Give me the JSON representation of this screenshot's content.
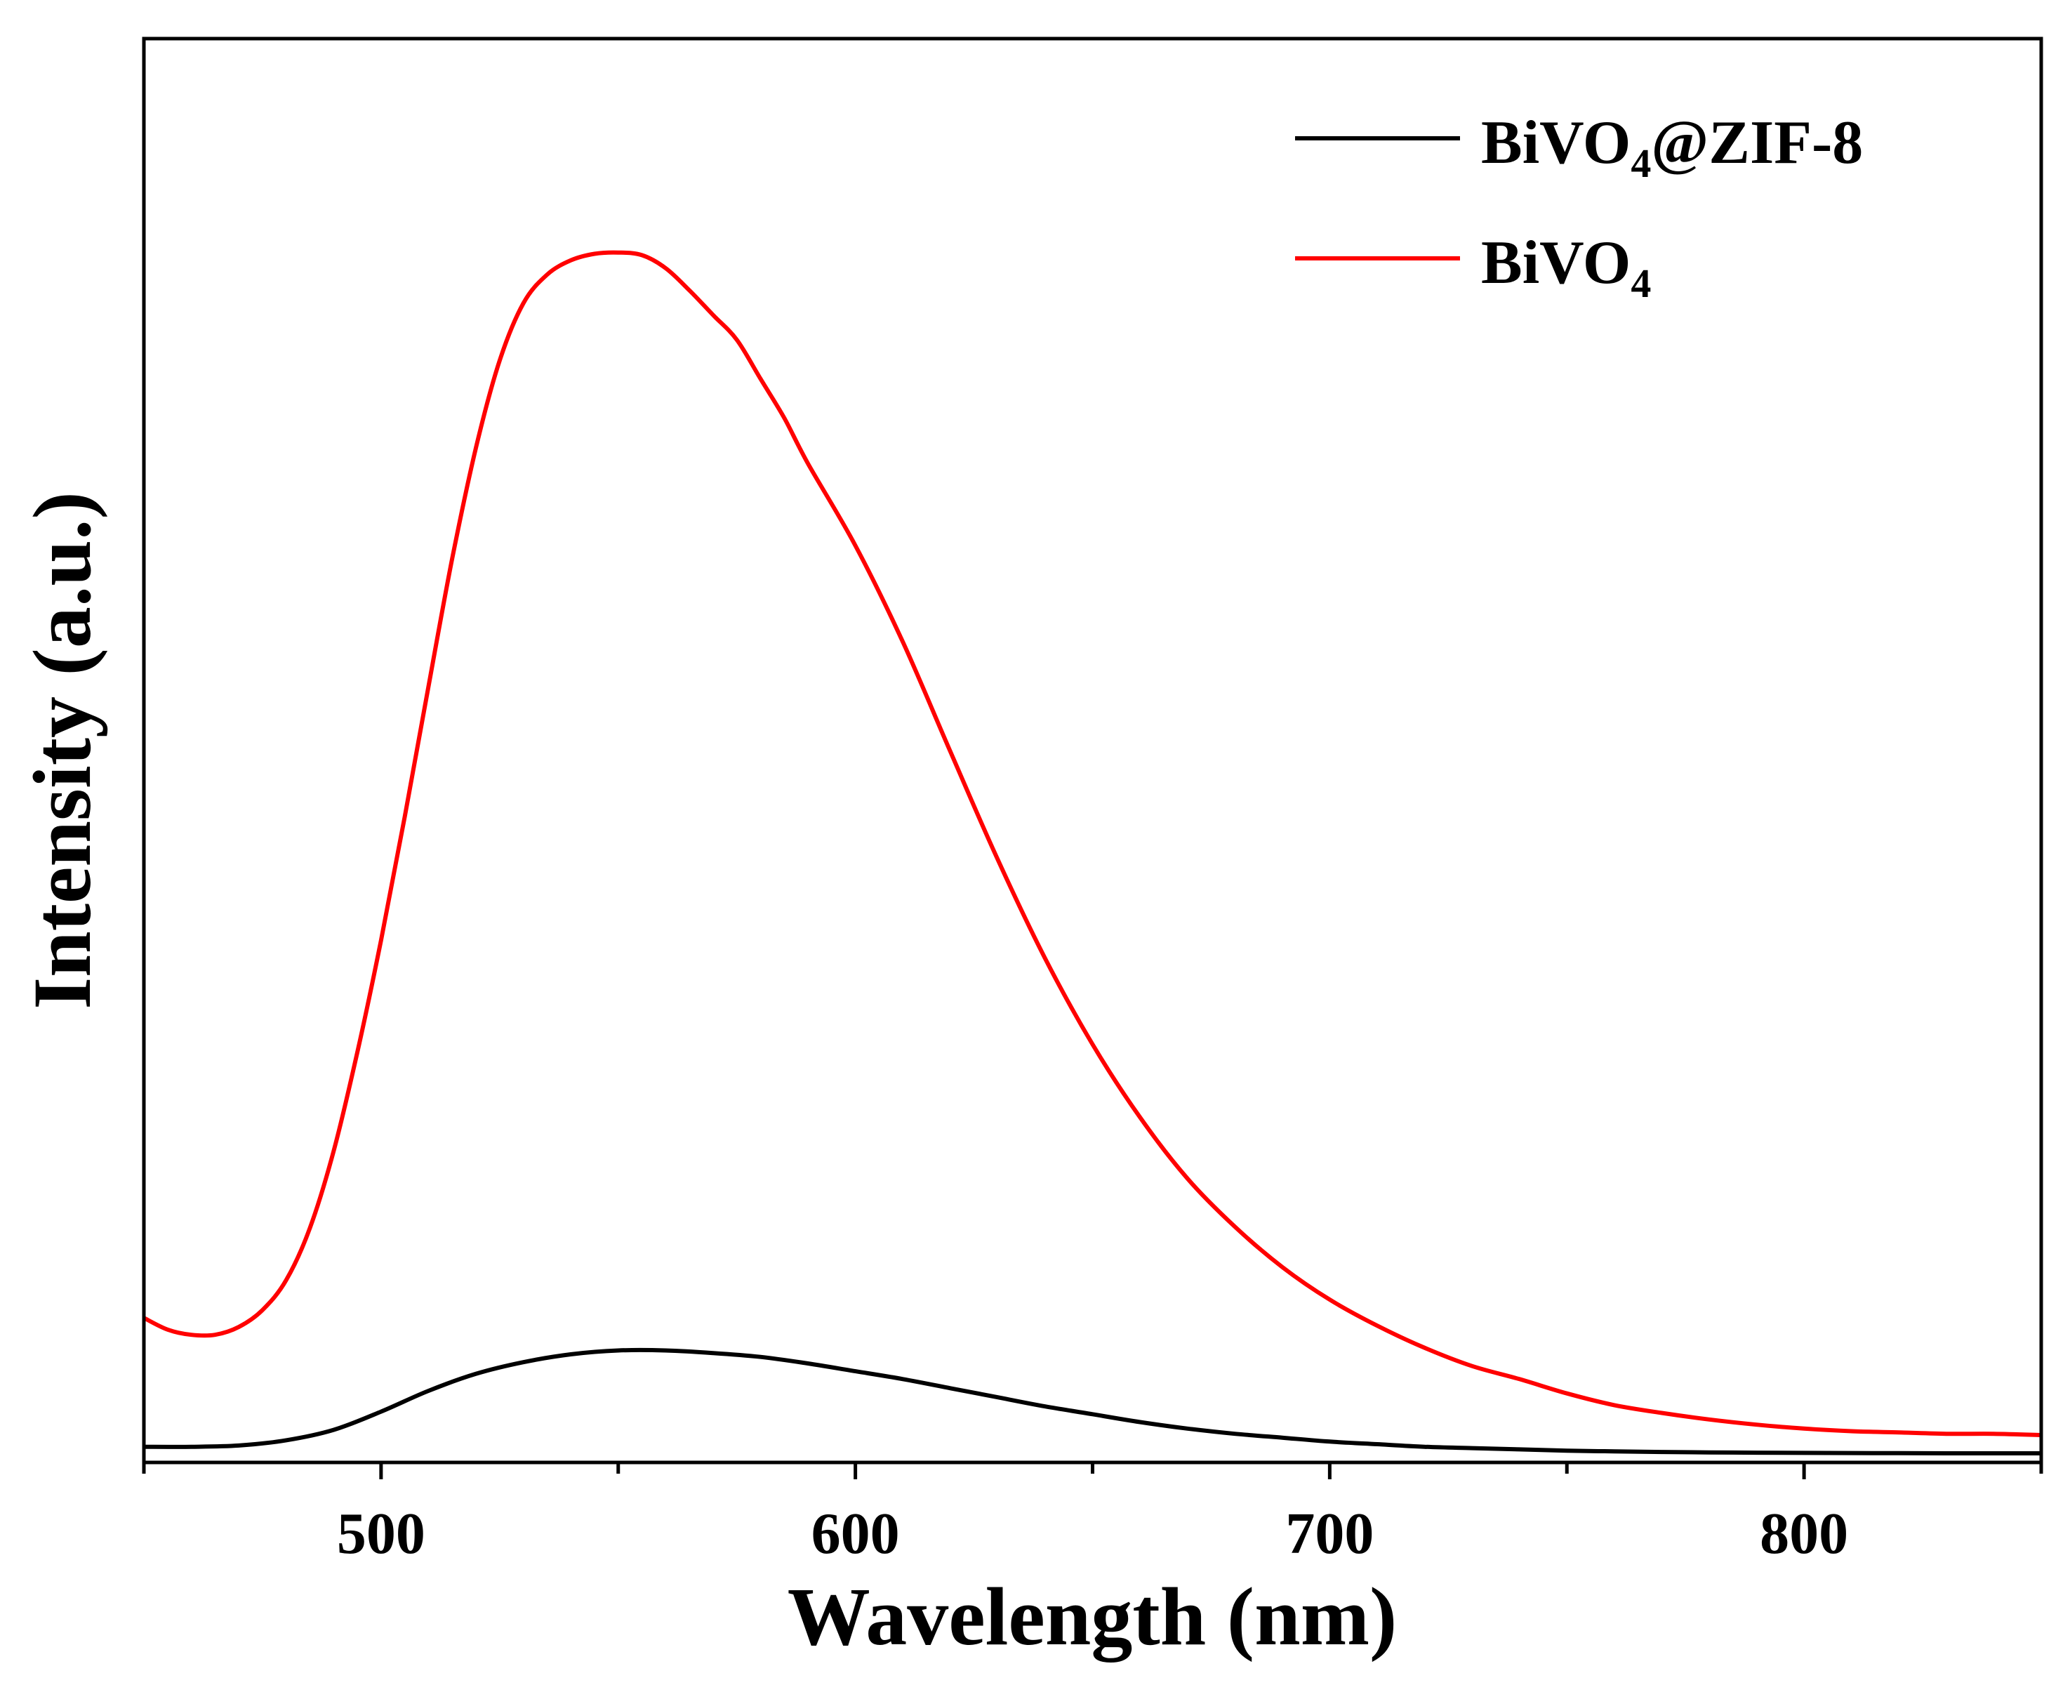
{
  "chart_data": {
    "type": "line",
    "title": "",
    "xlabel": "Wavelength (nm)",
    "ylabel": "Intensity (a.u.)",
    "xlim": [
      450,
      850
    ],
    "ylim": [
      0,
      100
    ],
    "x_ticks": [
      500,
      600,
      700,
      800
    ],
    "y_ticks": [],
    "grid": false,
    "legend_position": "top-right",
    "series": [
      {
        "name": "BiVO4@ZIF-8",
        "label_main": "BiVO",
        "label_sub": "4",
        "label_suffix": "@ZIF-8",
        "color": "#000000",
        "x": [
          450,
          460,
          470,
          480,
          490,
          500,
          510,
          520,
          530,
          540,
          550,
          560,
          570,
          580,
          590,
          600,
          610,
          620,
          630,
          640,
          650,
          660,
          670,
          680,
          690,
          700,
          710,
          720,
          730,
          740,
          750,
          760,
          770,
          780,
          790,
          800,
          810,
          820,
          830,
          840,
          850
        ],
        "y": [
          0.5,
          0.5,
          0.6,
          1.0,
          1.8,
          3.2,
          4.8,
          6.1,
          7.0,
          7.6,
          7.9,
          7.9,
          7.7,
          7.4,
          6.9,
          6.3,
          5.7,
          5.0,
          4.3,
          3.6,
          3.0,
          2.4,
          1.9,
          1.5,
          1.2,
          0.9,
          0.7,
          0.5,
          0.4,
          0.3,
          0.2,
          0.15,
          0.1,
          0.07,
          0.05,
          0.03,
          0.02,
          0.01,
          0.0,
          0.0,
          0.0
        ]
      },
      {
        "name": "BiVO4",
        "label_main": "BiVO",
        "label_sub": "4",
        "label_suffix": "",
        "color": "#ff0000",
        "x": [
          450,
          455,
          460,
          465,
          470,
          475,
          480,
          485,
          490,
          495,
          500,
          505,
          510,
          515,
          520,
          525,
          530,
          535,
          540,
          545,
          550,
          555,
          560,
          565,
          570,
          575,
          580,
          585,
          590,
          600,
          610,
          620,
          630,
          640,
          650,
          660,
          670,
          680,
          690,
          700,
          710,
          720,
          730,
          740,
          750,
          760,
          770,
          780,
          790,
          800,
          810,
          820,
          830,
          840,
          850
        ],
        "y": [
          10.4,
          9.5,
          9.1,
          9.1,
          9.7,
          11.0,
          13.3,
          17.3,
          23.2,
          30.8,
          39.4,
          48.9,
          58.9,
          68.7,
          77.2,
          83.9,
          88.3,
          90.5,
          91.6,
          92.1,
          92.2,
          92.0,
          91.0,
          89.3,
          87.4,
          85.5,
          82.5,
          79.5,
          76.0,
          69.7,
          62.3,
          53.9,
          45.6,
          38.0,
          31.4,
          25.8,
          21.1,
          17.4,
          14.3,
          11.8,
          9.8,
          8.1,
          6.7,
          5.7,
          4.6,
          3.7,
          3.1,
          2.6,
          2.2,
          1.9,
          1.7,
          1.6,
          1.5,
          1.5,
          1.4
        ]
      }
    ]
  }
}
